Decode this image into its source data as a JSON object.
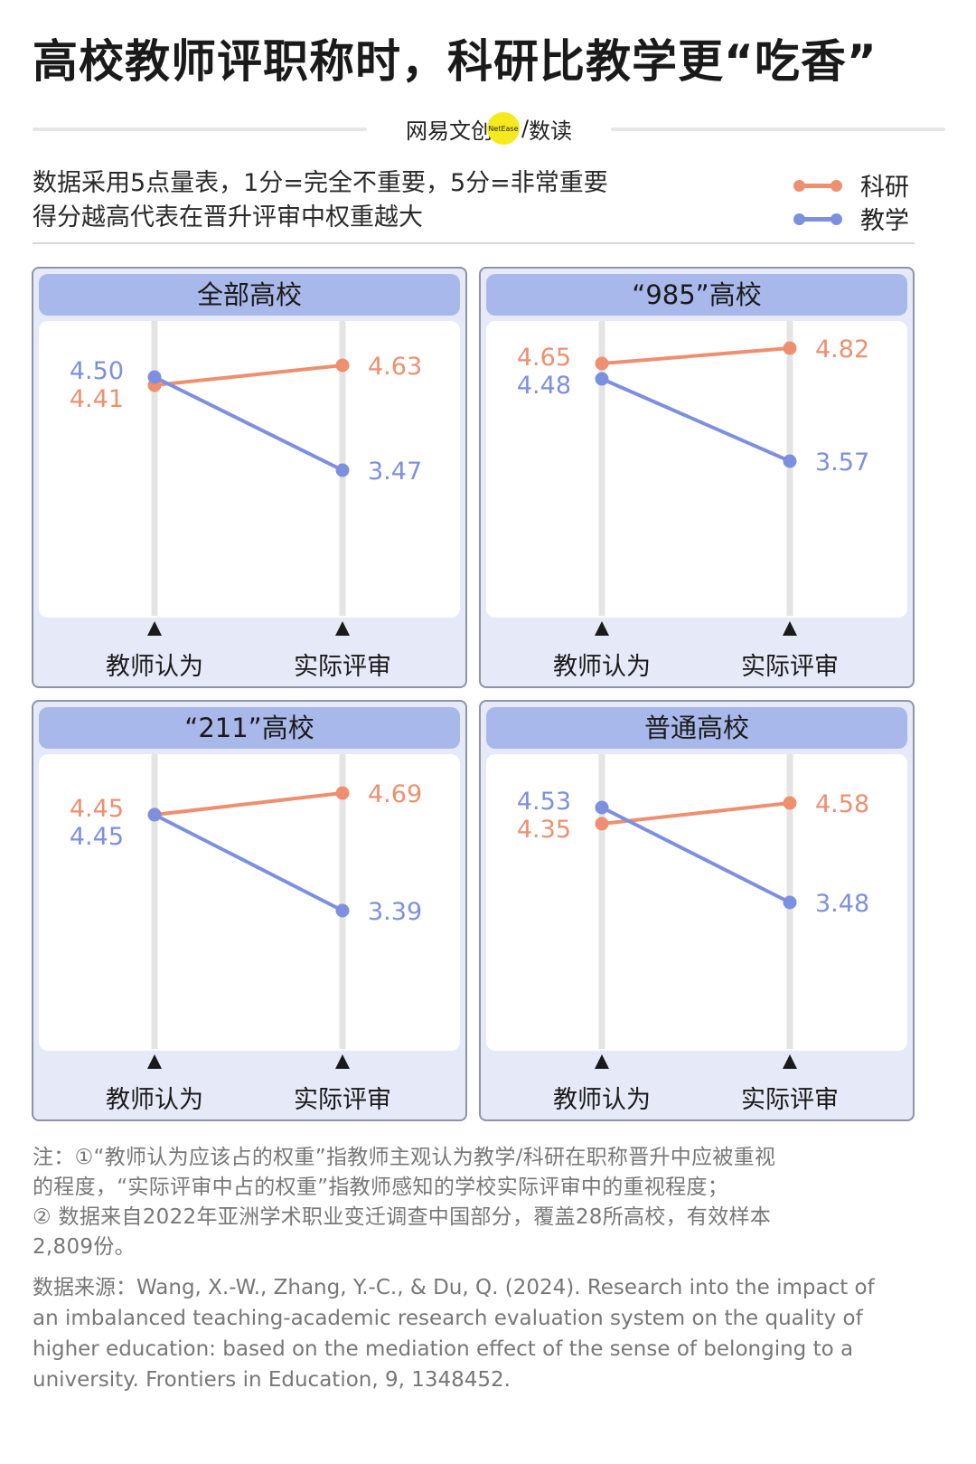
{
  "title": "高校教师评职称时，科研比教学更“吃香”",
  "brand": {
    "left": "网易文创",
    "badge": "NetEase",
    "sep": "/",
    "right": "数读"
  },
  "subtitle": {
    "line1": "数据采用5点量表，1分=完全不重要，5分=非常重要",
    "line2": "得分越高代表在晋升评审中权重越大"
  },
  "colors": {
    "research": "#ee8f70",
    "teaching": "#7d90e0",
    "panel_bg": "#e6e9f8",
    "panel_header": "#a9b8ea",
    "axis": "#e4e4e4"
  },
  "legend": [
    {
      "name": "科研",
      "color": "#ee8f70"
    },
    {
      "name": "教学",
      "color": "#7d90e0"
    }
  ],
  "chart_data": [
    {
      "type": "line",
      "title": "全部高校",
      "categories": [
        "教师认为",
        "实际评审"
      ],
      "ylim": [
        3,
        5
      ],
      "series": [
        {
          "name": "科研",
          "values": [
            4.41,
            4.63
          ]
        },
        {
          "name": "教学",
          "values": [
            4.5,
            3.47
          ]
        }
      ]
    },
    {
      "type": "line",
      "title": "“985”高校",
      "categories": [
        "教师认为",
        "实际评审"
      ],
      "ylim": [
        3,
        5
      ],
      "series": [
        {
          "name": "科研",
          "values": [
            4.65,
            4.82
          ]
        },
        {
          "name": "教学",
          "values": [
            4.48,
            3.57
          ]
        }
      ]
    },
    {
      "type": "line",
      "title": "“211”高校",
      "categories": [
        "教师认为",
        "实际评审"
      ],
      "ylim": [
        3,
        5
      ],
      "series": [
        {
          "name": "科研",
          "values": [
            4.45,
            4.69
          ]
        },
        {
          "name": "教学",
          "values": [
            4.45,
            3.39
          ]
        }
      ]
    },
    {
      "type": "line",
      "title": "普通高校",
      "categories": [
        "教师认为",
        "实际评审"
      ],
      "ylim": [
        3,
        5
      ],
      "series": [
        {
          "name": "科研",
          "values": [
            4.35,
            4.58
          ]
        },
        {
          "name": "教学",
          "values": [
            4.53,
            3.48
          ]
        }
      ]
    }
  ],
  "note": {
    "line1": "注：①“教师认为应该占的权重”指教师主观认为教学/科研在职称晋升中应被重视",
    "line2": "的程度，“实际评审中占的权重”指教师感知的学校实际评审中的重视程度；",
    "line3": "② 数据来自2022年亚洲学术职业变迁调查中国部分，覆盖28所高校，有效样本",
    "line4": "2,809份。"
  },
  "source": {
    "line1": "数据来源：Wang, X.-W., Zhang, Y.-C., & Du, Q. (2024). Research into the impact of",
    "line2": "an imbalanced teaching-academic research evaluation system on the quality of",
    "line3": "higher education: based on the mediation effect of the sense of belonging to a",
    "line4": "university. Frontiers in Education, 9, 1348452."
  }
}
